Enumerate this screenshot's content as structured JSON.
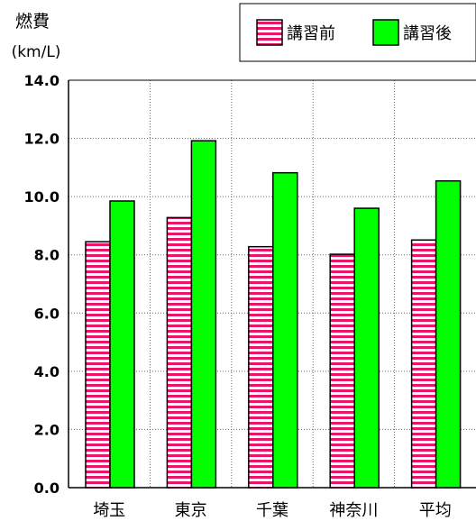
{
  "chart_data": {
    "type": "bar",
    "ylabel": "燃費",
    "yunit": "(km/L)",
    "ylim": [
      0,
      14
    ],
    "yticks": [
      "0.0",
      "2.0",
      "4.0",
      "6.0",
      "8.0",
      "10.0",
      "12.0",
      "14.0"
    ],
    "categories": [
      "埼玉",
      "東京",
      "千葉",
      "神奈川",
      "平均"
    ],
    "series": [
      {
        "name": "講習前",
        "pattern": "stripes",
        "color": "#e8156b",
        "stripe_color": "#ffffff",
        "values": [
          8.45,
          9.28,
          8.28,
          8.02,
          8.51
        ]
      },
      {
        "name": "講習後",
        "pattern": "solid",
        "color": "#00ff00",
        "values": [
          9.85,
          11.92,
          10.82,
          9.6,
          10.54
        ]
      }
    ],
    "grid": "both-dotted",
    "legend": "top-right"
  }
}
